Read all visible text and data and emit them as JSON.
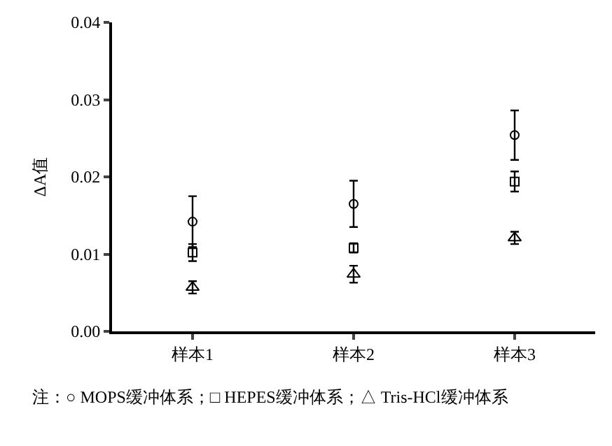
{
  "chart_data": {
    "type": "scatter",
    "ylabel": "ΔA值",
    "categories": [
      "样本1",
      "样本2",
      "样本3"
    ],
    "series": [
      {
        "color": "#000000",
        "marker": "circle",
        "values": [
          0.0142,
          0.0165,
          0.0254
        ],
        "errors": [
          0.0033,
          0.003,
          0.0032
        ]
      },
      {
        "color": "#000000",
        "marker": "square",
        "values": [
          0.0102,
          0.0108,
          0.0194
        ],
        "errors": [
          0.0011,
          0.0006,
          0.0013
        ]
      },
      {
        "color": "#000000",
        "marker": "triangle",
        "values": [
          0.0057,
          0.0074,
          0.0121
        ],
        "errors": [
          0.0008,
          0.0011,
          0.0008
        ]
      }
    ],
    "ylim": [
      0,
      0.04
    ],
    "yticks": [
      {
        "value": 0,
        "label": "0.00"
      },
      {
        "value": 0.01,
        "label": "0.01"
      },
      {
        "value": 0.02,
        "label": "0.02"
      },
      {
        "value": 0.03,
        "label": "0.03"
      },
      {
        "value": 0.04,
        "label": "0.04"
      }
    ],
    "annotations": [
      "注：○ MOPS缓冲体系；□ HEPES缓冲体系；△ Tris-HCl缓冲体系"
    ]
  }
}
